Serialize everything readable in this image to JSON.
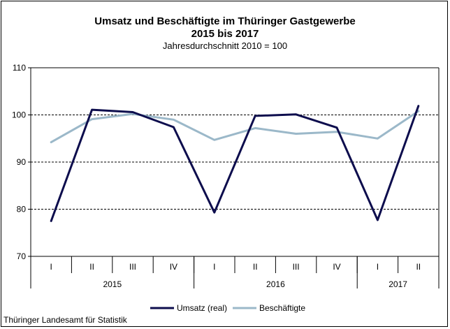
{
  "chart_data": {
    "type": "line",
    "title": "Umsatz und Beschäftigte im Thüringer Gastgewerbe",
    "subtitle": "2015 bis 2017",
    "subtitle2": "Jahresdurchschnitt 2010 = 100",
    "quarters": [
      "I",
      "II",
      "III",
      "IV",
      "I",
      "II",
      "III",
      "IV",
      "I",
      "II"
    ],
    "years": [
      {
        "label": "2015",
        "span": 4
      },
      {
        "label": "2016",
        "span": 4
      },
      {
        "label": "2017",
        "span": 2
      }
    ],
    "ylim": [
      70,
      110
    ],
    "yticks": [
      70,
      80,
      90,
      100,
      110
    ],
    "gridlines": [
      80,
      90,
      100
    ],
    "series": [
      {
        "name": "Umsatz (real)",
        "color": "#0d0d4d",
        "values": [
          77.5,
          101.1,
          100.6,
          97.4,
          79.3,
          99.8,
          100.1,
          97.3,
          77.7,
          101.9
        ]
      },
      {
        "name": "Beschäftigte",
        "color": "#9bb8c9",
        "values": [
          94.2,
          99.1,
          100.2,
          99.0,
          94.7,
          97.2,
          96.0,
          96.4,
          95.0,
          100.8
        ]
      }
    ],
    "legend_position": "bottom"
  },
  "footer": "Thüringer Landesamt für Statistik"
}
